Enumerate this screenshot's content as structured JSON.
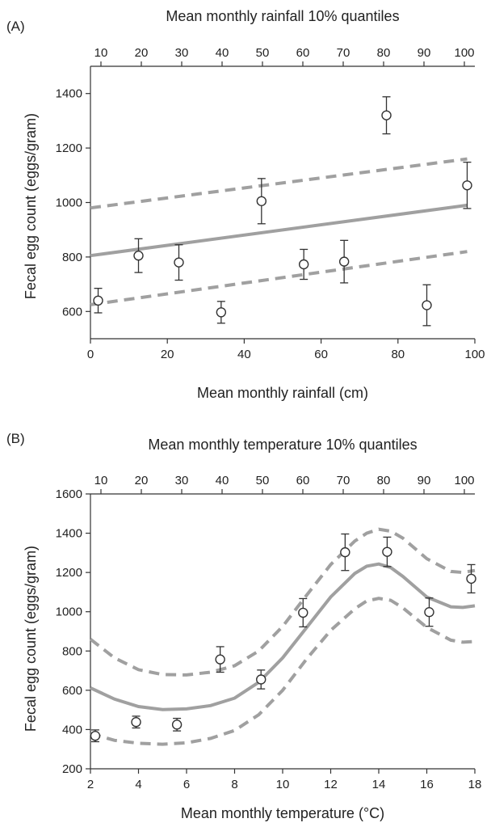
{
  "chart_data": [
    {
      "type": "scatter",
      "panel_label": "(A)",
      "top_axis_title": "Mean monthly rainfall 10% quantiles",
      "top_ticks": [
        10,
        20,
        30,
        40,
        50,
        60,
        70,
        80,
        90,
        100
      ],
      "xlabel": "Mean monthly rainfall (cm)",
      "ylabel": "Fecal egg count (eggs/gram)",
      "xlim": [
        0,
        100
      ],
      "ylim": [
        500,
        1500
      ],
      "xticks": [
        0,
        20,
        40,
        60,
        80,
        100
      ],
      "yticks": [
        600,
        800,
        1000,
        1200,
        1400
      ],
      "points": [
        {
          "x": 2,
          "y": 640,
          "err": 45
        },
        {
          "x": 12.5,
          "y": 805,
          "err": 62
        },
        {
          "x": 23,
          "y": 780,
          "err": 65
        },
        {
          "x": 34,
          "y": 597,
          "err": 40
        },
        {
          "x": 44.5,
          "y": 1005,
          "err": 83
        },
        {
          "x": 55.5,
          "y": 773,
          "err": 55
        },
        {
          "x": 66,
          "y": 783,
          "err": 78
        },
        {
          "x": 77,
          "y": 1320,
          "err": 68
        },
        {
          "x": 87.5,
          "y": 623,
          "err": 75
        },
        {
          "x": 98,
          "y": 1063,
          "err": 85
        }
      ],
      "fit": {
        "x": [
          0,
          98
        ],
        "y": [
          805,
          990
        ]
      },
      "fit_upper": {
        "x": [
          0,
          98
        ],
        "y": [
          980,
          1160
        ]
      },
      "fit_lower": {
        "x": [
          0,
          98
        ],
        "y": [
          625,
          820
        ]
      }
    },
    {
      "type": "scatter",
      "panel_label": "(B)",
      "top_axis_title": "Mean monthly temperature 10% quantiles",
      "top_ticks": [
        10,
        20,
        30,
        40,
        50,
        60,
        70,
        80,
        90,
        100
      ],
      "xlabel": "Mean monthly temperature (°C)",
      "ylabel": "Fecal egg count (eggs/gram)",
      "xlim": [
        2,
        18
      ],
      "ylim": [
        200,
        1600
      ],
      "xticks": [
        2,
        4,
        6,
        8,
        10,
        12,
        14,
        16,
        18
      ],
      "yticks": [
        200,
        400,
        600,
        800,
        1000,
        1200,
        1400,
        1600
      ],
      "points": [
        {
          "x": 2.2,
          "y": 368,
          "err": 30
        },
        {
          "x": 3.9,
          "y": 438,
          "err": 30
        },
        {
          "x": 5.6,
          "y": 425,
          "err": 32
        },
        {
          "x": 7.4,
          "y": 757,
          "err": 65
        },
        {
          "x": 9.1,
          "y": 655,
          "err": 48
        },
        {
          "x": 10.85,
          "y": 995,
          "err": 72
        },
        {
          "x": 12.6,
          "y": 1303,
          "err": 93
        },
        {
          "x": 14.35,
          "y": 1305,
          "err": 75
        },
        {
          "x": 16.1,
          "y": 998,
          "err": 72
        },
        {
          "x": 17.85,
          "y": 1168,
          "err": 72
        }
      ],
      "fit": {
        "x": [
          2,
          3,
          4,
          5,
          6,
          7,
          8,
          9,
          10,
          11,
          12,
          13,
          13.5,
          14,
          14.5,
          15,
          16,
          17,
          17.5,
          18
        ],
        "y": [
          612,
          555,
          517,
          502,
          505,
          522,
          560,
          640,
          765,
          920,
          1075,
          1195,
          1232,
          1243,
          1225,
          1180,
          1075,
          1025,
          1022,
          1030
        ]
      },
      "fit_upper": {
        "x": [
          2,
          3,
          4,
          5,
          6,
          7,
          8,
          9,
          10,
          11,
          12,
          13,
          13.5,
          14,
          14.5,
          15,
          16,
          17,
          17.5,
          18
        ],
        "y": [
          860,
          765,
          705,
          680,
          678,
          692,
          725,
          800,
          925,
          1085,
          1240,
          1360,
          1400,
          1420,
          1410,
          1375,
          1270,
          1205,
          1200,
          1210
        ]
      },
      "fit_lower": {
        "x": [
          2,
          3,
          4,
          5,
          6,
          7,
          8,
          9,
          10,
          11,
          12,
          13,
          13.5,
          14,
          14.5,
          15,
          16,
          17,
          17.5,
          18
        ],
        "y": [
          380,
          345,
          330,
          325,
          332,
          355,
          395,
          475,
          600,
          760,
          905,
          1015,
          1055,
          1068,
          1058,
          1020,
          920,
          855,
          845,
          848
        ]
      }
    }
  ]
}
